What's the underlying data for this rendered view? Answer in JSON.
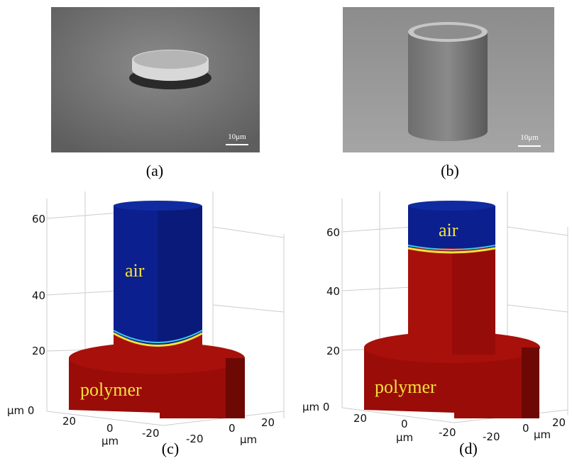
{
  "panels": [
    {
      "scale_bar": "10μm",
      "caption": "(a)"
    },
    {
      "scale_bar": "10μm",
      "caption": "(b)"
    },
    {
      "caption": "(c)",
      "z_tick_labels": [
        "60",
        "40",
        "20",
        "μm 0"
      ],
      "x_tick_labels": [
        "20",
        "0",
        "-20"
      ],
      "x_unit": "μm",
      "y_tick_labels": [
        "-20",
        "0",
        "20"
      ],
      "y_unit": "μm",
      "upper_label": "air",
      "lower_label": "polymer"
    },
    {
      "caption": "(d)",
      "z_tick_labels": [
        "60",
        "40",
        "20",
        "μm 0"
      ],
      "x_tick_labels": [
        "20",
        "0",
        "-20"
      ],
      "x_unit": "μm",
      "y_tick_labels": [
        "-20",
        "0",
        "20"
      ],
      "y_unit": "μm",
      "upper_label": "air",
      "lower_label": "polymer"
    }
  ]
}
